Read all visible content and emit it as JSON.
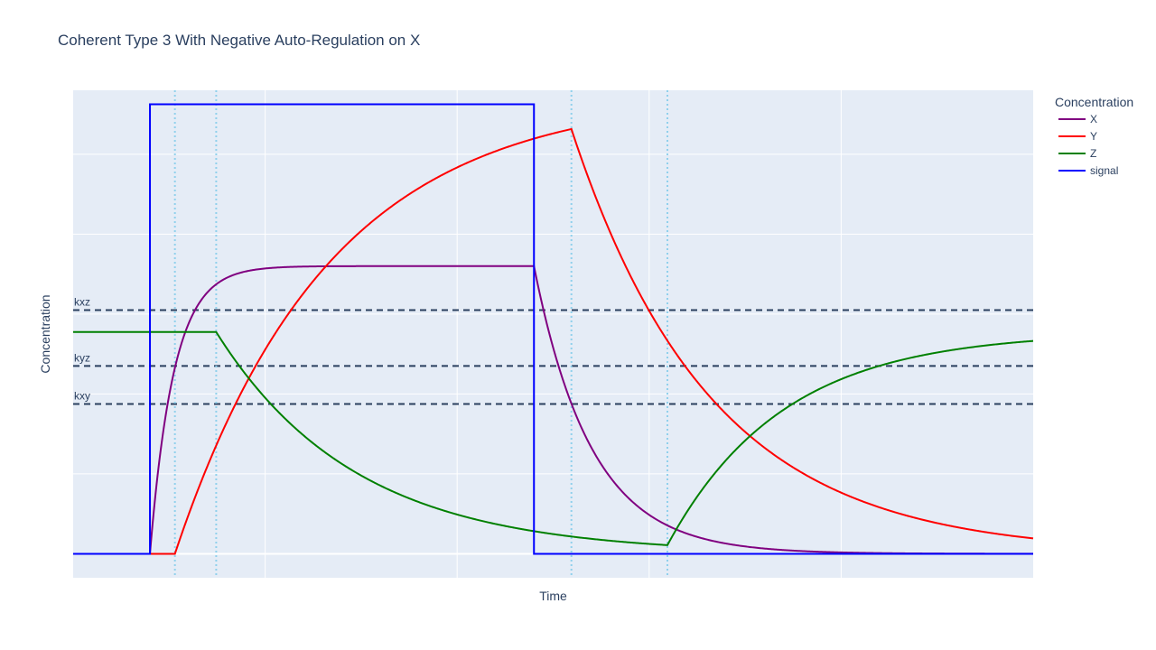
{
  "chart_data": {
    "type": "line",
    "title": "Coherent Type 3 With Negative Auto-Regulation on X",
    "xlabel": "Time",
    "ylabel": "Concentration",
    "xlim": [
      0,
      10
    ],
    "ylim": [
      -0.06,
      1.16
    ],
    "grid": true,
    "x_tick_labels_visible": false,
    "y_tick_labels_visible": false,
    "legend": {
      "title": "Concentration",
      "placement": "right"
    },
    "signal_on": 0.8,
    "signal_off": 4.8,
    "series": [
      {
        "name": "X",
        "color": "#800080"
      },
      {
        "name": "Y",
        "color": "#ff0000"
      },
      {
        "name": "Z",
        "color": "#008000"
      },
      {
        "name": "signal",
        "color": "#0000ff"
      }
    ],
    "reference_lines": [
      {
        "label": "kxz",
        "y": 0.61
      },
      {
        "label": "kyz",
        "y": 0.47
      },
      {
        "label": "kxy",
        "y": 0.375
      }
    ],
    "threshold_crossings": [
      1.06,
      1.49,
      5.19,
      6.19
    ],
    "ref_line_color": "#2a3f5f",
    "crossing_line_color": "#87ceeb"
  }
}
